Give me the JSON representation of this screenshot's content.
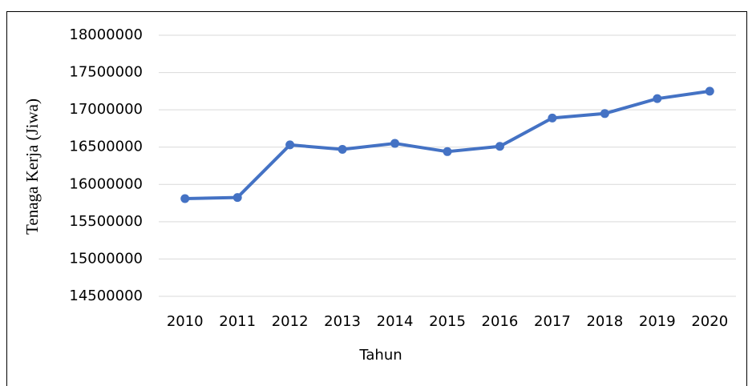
{
  "chart_data": {
    "type": "line",
    "x_label": "Tahun",
    "y_label": "Tenaga Kerja (Jiwa)",
    "categories": [
      "2010",
      "2011",
      "2012",
      "2013",
      "2014",
      "2015",
      "2016",
      "2017",
      "2018",
      "2019",
      "2020"
    ],
    "series": [
      {
        "name": "Tenaga Kerja",
        "color": "#4472c4",
        "values": [
          15810000,
          15825000,
          16530000,
          16470000,
          16550000,
          16440000,
          16510000,
          16890000,
          16950000,
          17150000,
          17250000
        ]
      }
    ],
    "ylim": [
      14500000,
      18000000
    ],
    "yticks": [
      14500000,
      15000000,
      15500000,
      16000000,
      16500000,
      17000000,
      17500000,
      18000000
    ],
    "grid": true
  }
}
